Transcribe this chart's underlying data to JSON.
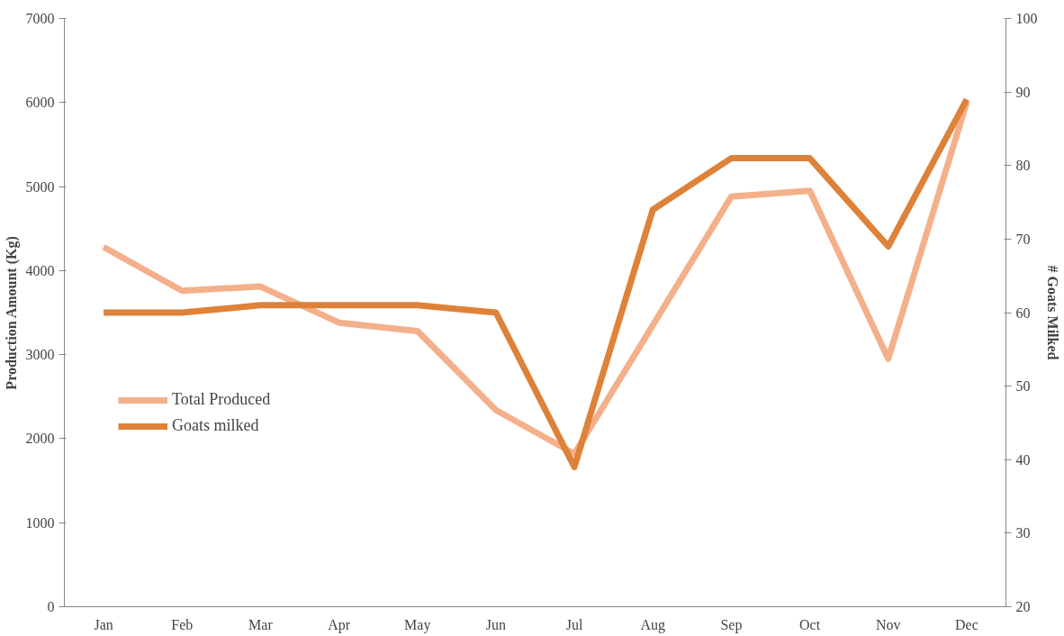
{
  "chart_data": {
    "type": "line",
    "ylabel": "Production Amount (Kg)",
    "y2label": "# Goats Milked",
    "categories": [
      "Jan",
      "Feb",
      "Mar",
      "Apr",
      "May",
      "Jun",
      "Jul",
      "Aug",
      "Sep",
      "Oct",
      "Nov",
      "Dec"
    ],
    "series": [
      {
        "name": "Total Produced",
        "color": "#f4b08a",
        "values": [
          4280,
          3760,
          3810,
          3380,
          3280,
          2340,
          1820,
          3350,
          4880,
          4950,
          2950,
          6000
        ]
      },
      {
        "name": "Goats milked",
        "color": "#de8239",
        "axis": "y2",
        "values": [
          60,
          60,
          61,
          61,
          61,
          60,
          39,
          74,
          81,
          81,
          69,
          89
        ]
      }
    ],
    "ylim": [
      0,
      7000
    ],
    "yticks": [
      0,
      1000,
      2000,
      3000,
      4000,
      5000,
      6000,
      7000
    ],
    "y2lim": [
      20,
      100
    ],
    "y2ticks": [
      20,
      30,
      40,
      50,
      60,
      70,
      80,
      90,
      100
    ],
    "grid": false,
    "legend": "bottom left",
    "marker": "none",
    "line_style": "solid"
  }
}
